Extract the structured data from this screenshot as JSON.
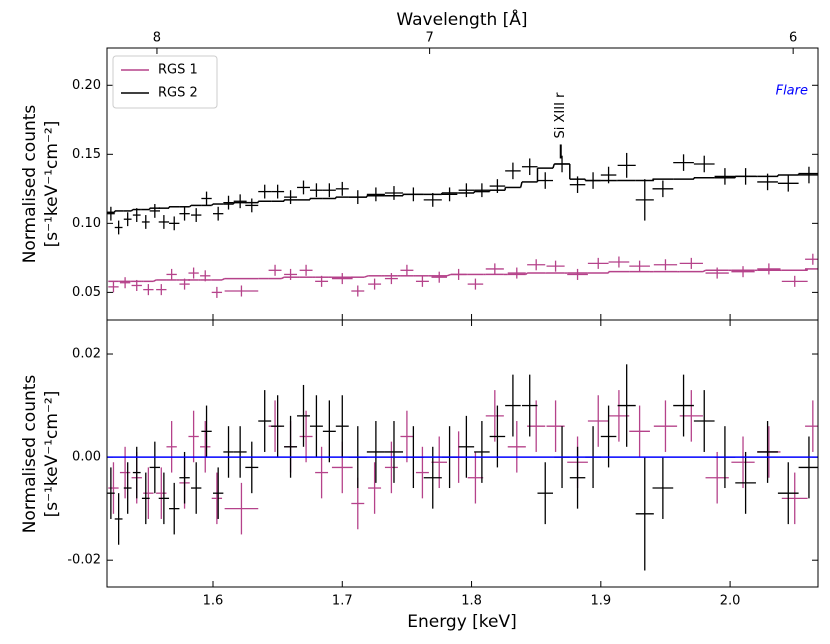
{
  "chart_data": {
    "type": "spectrum",
    "xlabel": "Energy [keV]",
    "x2label": "Wavelength [Å]",
    "ylabel": [
      "Normalised counts",
      "[s⁻¹keV⁻¹cm⁻²]"
    ],
    "residual_ylabel": [
      "Normalised counts",
      "[s⁻¹keV⁻¹cm⁻²]"
    ],
    "panel_label": "Flare",
    "panel_label_color": "#0000ff",
    "legend": "upper left",
    "zero_line_color": "#0000ff",
    "xlim": [
      1.518,
      2.068
    ],
    "xticks": [
      1.6,
      1.7,
      1.8,
      1.9,
      {
        "value": 2.0,
        "label": "2.0"
      }
    ],
    "x2scale": "reciprocal",
    "x2lim": [
      8.215,
      5.942
    ],
    "x2ticks": [
      8,
      7,
      6
    ],
    "ylim": [
      0.03,
      0.227
    ],
    "yticks": [
      0.05,
      {
        "value": 0.1,
        "label": "0.10"
      },
      0.15,
      {
        "value": 0.2,
        "label": "0.20"
      }
    ],
    "residual_ylim": [
      -0.0252,
      0.0266
    ],
    "residual_yticks": [
      {
        "value": -0.02,
        "label": "-0.02"
      },
      {
        "value": 0,
        "label": "0.00"
      },
      0.02
    ],
    "annotations": [
      {
        "text": "Si XIII r",
        "x": 1.869,
        "y": 0.147
      }
    ],
    "series": [
      {
        "name": "RGS 1",
        "color": "#b5428a",
        "x": [
          1.523,
          1.532,
          1.541,
          1.55,
          1.56,
          1.568,
          1.578,
          1.585,
          1.594,
          1.603,
          1.622,
          1.648,
          1.66,
          1.672,
          1.684,
          1.7,
          1.712,
          1.725,
          1.738,
          1.75,
          1.762,
          1.775,
          1.79,
          1.803,
          1.818,
          1.835,
          1.85,
          1.865,
          1.882,
          1.898,
          1.914,
          1.93,
          1.95,
          1.97,
          1.99,
          2.01,
          2.03,
          2.05,
          2.064
        ],
        "xerr": [
          0.004,
          0.004,
          0.004,
          0.004,
          0.004,
          0.004,
          0.004,
          0.004,
          0.004,
          0.004,
          0.013,
          0.005,
          0.005,
          0.005,
          0.005,
          0.008,
          0.005,
          0.005,
          0.005,
          0.005,
          0.005,
          0.006,
          0.006,
          0.006,
          0.007,
          0.007,
          0.007,
          0.007,
          0.008,
          0.008,
          0.008,
          0.008,
          0.009,
          0.009,
          0.009,
          0.009,
          0.009,
          0.01,
          0.006
        ],
        "values": [
          0.054,
          0.057,
          0.055,
          0.052,
          0.052,
          0.063,
          0.056,
          0.064,
          0.062,
          0.05,
          0.051,
          0.066,
          0.063,
          0.066,
          0.058,
          0.06,
          0.051,
          0.056,
          0.06,
          0.066,
          0.058,
          0.061,
          0.063,
          0.056,
          0.067,
          0.064,
          0.07,
          0.069,
          0.063,
          0.071,
          0.072,
          0.069,
          0.07,
          0.071,
          0.064,
          0.065,
          0.067,
          0.058,
          0.074
        ],
        "yerr": [
          0.004,
          0.004,
          0.004,
          0.004,
          0.004,
          0.004,
          0.004,
          0.004,
          0.004,
          0.004,
          0.004,
          0.004,
          0.004,
          0.004,
          0.004,
          0.004,
          0.004,
          0.004,
          0.004,
          0.004,
          0.004,
          0.004,
          0.004,
          0.004,
          0.004,
          0.004,
          0.004,
          0.004,
          0.004,
          0.004,
          0.004,
          0.004,
          0.004,
          0.004,
          0.004,
          0.004,
          0.004,
          0.004,
          0.004
        ],
        "model": [
          0.058,
          0.058,
          0.058,
          0.058,
          0.059,
          0.059,
          0.059,
          0.059,
          0.059,
          0.059,
          0.06,
          0.06,
          0.061,
          0.061,
          0.061,
          0.061,
          0.061,
          0.062,
          0.062,
          0.062,
          0.062,
          0.062,
          0.063,
          0.063,
          0.063,
          0.063,
          0.064,
          0.064,
          0.064,
          0.064,
          0.065,
          0.065,
          0.065,
          0.065,
          0.066,
          0.066,
          0.066,
          0.066,
          0.067
        ],
        "residuals": [
          -0.006,
          -0.003,
          -0.004,
          -0.007,
          -0.007,
          0.002,
          -0.005,
          0.004,
          0.002,
          -0.008,
          -0.01,
          0.006,
          0.002,
          0.004,
          -0.003,
          -0.002,
          -0.009,
          -0.006,
          -0.002,
          0.004,
          -0.003,
          -0.001,
          0.0,
          -0.004,
          0.008,
          0.002,
          0.006,
          0.006,
          -0.001,
          0.007,
          0.008,
          0.005,
          0.006,
          0.008,
          -0.004,
          -0.001,
          0.001,
          -0.008,
          0.006
        ],
        "residual_err": [
          0.005,
          0.005,
          0.005,
          0.005,
          0.005,
          0.005,
          0.005,
          0.005,
          0.005,
          0.005,
          0.005,
          0.005,
          0.005,
          0.005,
          0.005,
          0.005,
          0.005,
          0.005,
          0.005,
          0.005,
          0.005,
          0.005,
          0.005,
          0.005,
          0.005,
          0.005,
          0.005,
          0.005,
          0.005,
          0.005,
          0.005,
          0.005,
          0.005,
          0.005,
          0.005,
          0.005,
          0.005,
          0.005,
          0.005
        ]
      },
      {
        "name": "RGS 2",
        "color": "#000000",
        "x": [
          1.521,
          1.527,
          1.534,
          1.541,
          1.548,
          1.555,
          1.562,
          1.57,
          1.578,
          1.587,
          1.595,
          1.604,
          1.612,
          1.621,
          1.63,
          1.64,
          1.65,
          1.66,
          1.67,
          1.68,
          1.69,
          1.7,
          1.712,
          1.726,
          1.74,
          1.755,
          1.77,
          1.783,
          1.796,
          1.808,
          1.82,
          1.832,
          1.845,
          1.857,
          1.87,
          1.882,
          1.894,
          1.906,
          1.92,
          1.934,
          1.948,
          1.964,
          1.98,
          1.996,
          2.012,
          2.029,
          2.045,
          2.061
        ],
        "xerr": [
          0.003,
          0.003,
          0.003,
          0.003,
          0.003,
          0.004,
          0.004,
          0.004,
          0.004,
          0.004,
          0.004,
          0.004,
          0.004,
          0.005,
          0.005,
          0.005,
          0.005,
          0.005,
          0.005,
          0.005,
          0.005,
          0.005,
          0.007,
          0.007,
          0.007,
          0.008,
          0.007,
          0.006,
          0.006,
          0.006,
          0.006,
          0.006,
          0.006,
          0.006,
          0.006,
          0.006,
          0.006,
          0.006,
          0.007,
          0.007,
          0.008,
          0.008,
          0.008,
          0.008,
          0.008,
          0.008,
          0.008,
          0.008
        ],
        "values": [
          0.107,
          0.097,
          0.103,
          0.106,
          0.101,
          0.109,
          0.101,
          0.1,
          0.107,
          0.106,
          0.118,
          0.107,
          0.115,
          0.116,
          0.113,
          0.123,
          0.123,
          0.119,
          0.126,
          0.124,
          0.124,
          0.125,
          0.119,
          0.121,
          0.122,
          0.121,
          0.117,
          0.121,
          0.124,
          0.124,
          0.127,
          0.138,
          0.141,
          0.131,
          0.143,
          0.128,
          0.131,
          0.135,
          0.142,
          0.117,
          0.125,
          0.144,
          0.143,
          0.134,
          0.134,
          0.13,
          0.129,
          0.135
        ],
        "yerr": [
          0.005,
          0.005,
          0.005,
          0.005,
          0.005,
          0.005,
          0.005,
          0.005,
          0.005,
          0.005,
          0.005,
          0.005,
          0.005,
          0.005,
          0.005,
          0.005,
          0.005,
          0.005,
          0.005,
          0.005,
          0.005,
          0.005,
          0.005,
          0.005,
          0.005,
          0.005,
          0.005,
          0.005,
          0.005,
          0.005,
          0.005,
          0.006,
          0.006,
          0.006,
          0.006,
          0.006,
          0.006,
          0.006,
          0.009,
          0.015,
          0.006,
          0.006,
          0.006,
          0.006,
          0.006,
          0.006,
          0.006,
          0.006
        ],
        "model": [
          0.108,
          0.109,
          0.109,
          0.11,
          0.11,
          0.111,
          0.111,
          0.112,
          0.112,
          0.113,
          0.113,
          0.114,
          0.114,
          0.115,
          0.115,
          0.116,
          0.116,
          0.117,
          0.117,
          0.118,
          0.118,
          0.119,
          0.119,
          0.12,
          0.12,
          0.121,
          0.121,
          0.122,
          0.122,
          0.123,
          0.124,
          0.126,
          0.13,
          0.14,
          0.143,
          0.132,
          0.131,
          0.131,
          0.131,
          0.131,
          0.132,
          0.132,
          0.133,
          0.133,
          0.134,
          0.134,
          0.135,
          0.136
        ],
        "residuals": [
          -0.007,
          -0.012,
          -0.006,
          -0.003,
          -0.008,
          -0.002,
          -0.008,
          -0.01,
          -0.004,
          -0.006,
          0.005,
          -0.007,
          0.001,
          0.001,
          -0.002,
          0.007,
          0.006,
          0.002,
          0.008,
          0.006,
          0.005,
          0.006,
          0.0,
          0.001,
          0.001,
          0.0,
          -0.004,
          0.0,
          0.002,
          0.001,
          0.004,
          0.01,
          0.01,
          -0.007,
          0.0,
          -0.004,
          0.0,
          0.004,
          0.01,
          -0.011,
          -0.006,
          0.01,
          0.007,
          0.0,
          -0.005,
          0.001,
          -0.007,
          -0.002
        ],
        "residual_err": [
          0.005,
          0.005,
          0.005,
          0.005,
          0.005,
          0.005,
          0.005,
          0.005,
          0.005,
          0.005,
          0.005,
          0.005,
          0.005,
          0.005,
          0.005,
          0.006,
          0.006,
          0.006,
          0.006,
          0.006,
          0.006,
          0.006,
          0.006,
          0.006,
          0.006,
          0.006,
          0.006,
          0.006,
          0.006,
          0.006,
          0.006,
          0.006,
          0.006,
          0.006,
          0.006,
          0.006,
          0.006,
          0.006,
          0.008,
          0.011,
          0.006,
          0.006,
          0.006,
          0.006,
          0.006,
          0.006,
          0.006,
          0.006
        ]
      }
    ]
  }
}
